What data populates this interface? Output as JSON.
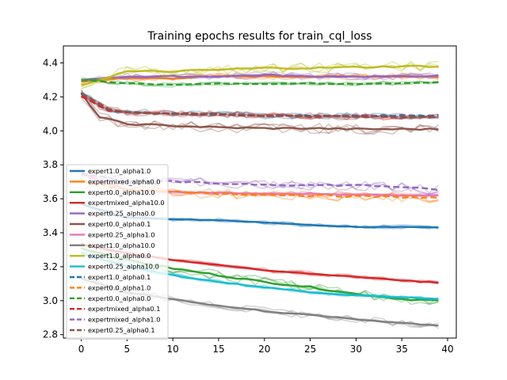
{
  "chart_data": {
    "type": "line",
    "title": "Training epochs results for train_cql_loss",
    "xlabel": "",
    "ylabel": "",
    "xlim": [
      -1.95,
      40.95
    ],
    "ylim": [
      2.78,
      4.5
    ],
    "xticks": [
      0,
      5,
      10,
      15,
      20,
      25,
      30,
      35,
      40
    ],
    "yticks": [
      2.8,
      3.0,
      3.2,
      3.4,
      3.6,
      3.8,
      4.0,
      4.2,
      4.4
    ],
    "x_start": 0,
    "x_end": 39,
    "grid": false,
    "legend_position": "lower-left",
    "series": [
      {
        "name": "expert1.0_alpha1.0",
        "color": "#1f77b4",
        "dash": false,
        "points": [
          [
            0,
            3.57
          ],
          [
            5,
            3.49
          ],
          [
            10,
            3.48
          ],
          [
            15,
            3.475
          ],
          [
            20,
            3.46
          ],
          [
            25,
            3.445
          ],
          [
            30,
            3.435
          ],
          [
            35,
            3.435
          ],
          [
            39,
            3.43
          ]
        ]
      },
      {
        "name": "expertmixed_alpha0.0",
        "color": "#ff7f0e",
        "dash": false,
        "points": [
          [
            0,
            4.29
          ],
          [
            5,
            4.31
          ],
          [
            10,
            4.31
          ],
          [
            15,
            4.32
          ],
          [
            20,
            4.32
          ],
          [
            25,
            4.32
          ],
          [
            30,
            4.32
          ],
          [
            35,
            4.32
          ],
          [
            39,
            4.32
          ]
        ]
      },
      {
        "name": "expert0.0_alpha10.0",
        "color": "#2ca02c",
        "dash": false,
        "points": [
          [
            0,
            3.31
          ],
          [
            5,
            3.24
          ],
          [
            10,
            3.19
          ],
          [
            15,
            3.15
          ],
          [
            20,
            3.11
          ],
          [
            25,
            3.08
          ],
          [
            30,
            3.04
          ],
          [
            35,
            3.01
          ],
          [
            39,
            3.0
          ]
        ]
      },
      {
        "name": "expertmixed_alpha10.0",
        "color": "#d62728",
        "dash": false,
        "points": [
          [
            0,
            3.33
          ],
          [
            5,
            3.28
          ],
          [
            10,
            3.24
          ],
          [
            15,
            3.21
          ],
          [
            20,
            3.18
          ],
          [
            25,
            3.16
          ],
          [
            30,
            3.14
          ],
          [
            35,
            3.12
          ],
          [
            39,
            3.105
          ]
        ]
      },
      {
        "name": "expert0.25_alpha0.0",
        "color": "#9467bd",
        "dash": false,
        "points": [
          [
            0,
            4.3
          ],
          [
            5,
            4.32
          ],
          [
            10,
            4.32
          ],
          [
            15,
            4.32
          ],
          [
            20,
            4.33
          ],
          [
            25,
            4.32
          ],
          [
            30,
            4.32
          ],
          [
            35,
            4.32
          ],
          [
            39,
            4.325
          ]
        ]
      },
      {
        "name": "expert0.0_alpha0.1",
        "color": "#8c564b",
        "dash": false,
        "points": [
          [
            0,
            4.22
          ],
          [
            2,
            4.08
          ],
          [
            5,
            4.04
          ],
          [
            10,
            4.03
          ],
          [
            15,
            4.02
          ],
          [
            20,
            4.015
          ],
          [
            25,
            4.015
          ],
          [
            30,
            4.01
          ],
          [
            35,
            4.01
          ],
          [
            39,
            4.01
          ]
        ]
      },
      {
        "name": "expert0.25_alpha1.0",
        "color": "#e377c2",
        "dash": false,
        "points": [
          [
            0,
            3.75
          ],
          [
            5,
            3.65
          ],
          [
            10,
            3.64
          ],
          [
            15,
            3.635
          ],
          [
            20,
            3.63
          ],
          [
            25,
            3.63
          ],
          [
            30,
            3.625
          ],
          [
            35,
            3.62
          ],
          [
            39,
            3.62
          ]
        ]
      },
      {
        "name": "expert1.0_alpha10.0",
        "color": "#7f7f7f",
        "dash": false,
        "points": [
          [
            0,
            3.13
          ],
          [
            5,
            3.05
          ],
          [
            10,
            3.01
          ],
          [
            15,
            2.97
          ],
          [
            20,
            2.94
          ],
          [
            25,
            2.915
          ],
          [
            30,
            2.89
          ],
          [
            35,
            2.87
          ],
          [
            39,
            2.855
          ]
        ]
      },
      {
        "name": "expert1.0_alpha0.0",
        "color": "#bcbd22",
        "dash": false,
        "points": [
          [
            0,
            4.27
          ],
          [
            5,
            4.35
          ],
          [
            10,
            4.35
          ],
          [
            15,
            4.36
          ],
          [
            20,
            4.37
          ],
          [
            25,
            4.37
          ],
          [
            30,
            4.375
          ],
          [
            35,
            4.38
          ],
          [
            39,
            4.38
          ]
        ]
      },
      {
        "name": "expert0.25_alpha10.0",
        "color": "#17becf",
        "dash": false,
        "points": [
          [
            0,
            3.28
          ],
          [
            5,
            3.2
          ],
          [
            10,
            3.15
          ],
          [
            15,
            3.11
          ],
          [
            20,
            3.08
          ],
          [
            25,
            3.05
          ],
          [
            30,
            3.03
          ],
          [
            35,
            3.02
          ],
          [
            39,
            3.01
          ]
        ]
      },
      {
        "name": "expert1.0_alpha0.1",
        "color": "#1f77b4",
        "dash": true,
        "points": [
          [
            0,
            4.22
          ],
          [
            3,
            4.12
          ],
          [
            5,
            4.11
          ],
          [
            10,
            4.1
          ],
          [
            15,
            4.095
          ],
          [
            20,
            4.09
          ],
          [
            25,
            4.09
          ],
          [
            30,
            4.09
          ],
          [
            35,
            4.09
          ],
          [
            39,
            4.09
          ]
        ]
      },
      {
        "name": "expert0.0_alpha1.0",
        "color": "#ff7f0e",
        "dash": true,
        "points": [
          [
            0,
            3.71
          ],
          [
            5,
            3.65
          ],
          [
            10,
            3.64
          ],
          [
            15,
            3.63
          ],
          [
            20,
            3.625
          ],
          [
            25,
            3.62
          ],
          [
            30,
            3.615
          ],
          [
            35,
            3.61
          ],
          [
            39,
            3.605
          ]
        ]
      },
      {
        "name": "expert0.0_alpha0.0",
        "color": "#2ca02c",
        "dash": true,
        "points": [
          [
            0,
            4.3
          ],
          [
            5,
            4.28
          ],
          [
            10,
            4.27
          ],
          [
            15,
            4.28
          ],
          [
            20,
            4.275
          ],
          [
            25,
            4.28
          ],
          [
            30,
            4.275
          ],
          [
            35,
            4.28
          ],
          [
            39,
            4.285
          ]
        ]
      },
      {
        "name": "expertmixed_alpha0.1",
        "color": "#d62728",
        "dash": true,
        "points": [
          [
            0,
            4.2
          ],
          [
            3,
            4.12
          ],
          [
            5,
            4.11
          ],
          [
            10,
            4.1
          ],
          [
            15,
            4.1
          ],
          [
            20,
            4.09
          ],
          [
            25,
            4.085
          ],
          [
            30,
            4.085
          ],
          [
            35,
            4.08
          ],
          [
            39,
            4.08
          ]
        ]
      },
      {
        "name": "expertmixed_alpha1.0",
        "color": "#9467bd",
        "dash": true,
        "points": [
          [
            0,
            3.75
          ],
          [
            5,
            3.7
          ],
          [
            10,
            3.7
          ],
          [
            15,
            3.69
          ],
          [
            20,
            3.685
          ],
          [
            25,
            3.68
          ],
          [
            30,
            3.68
          ],
          [
            35,
            3.67
          ],
          [
            39,
            3.65
          ]
        ]
      },
      {
        "name": "expert0.25_alpha0.1",
        "color": "#8c564b",
        "dash": true,
        "points": [
          [
            0,
            4.22
          ],
          [
            3,
            4.13
          ],
          [
            5,
            4.11
          ],
          [
            10,
            4.1
          ],
          [
            15,
            4.1
          ],
          [
            20,
            4.09
          ],
          [
            25,
            4.085
          ],
          [
            30,
            4.085
          ],
          [
            35,
            4.08
          ],
          [
            39,
            4.08
          ]
        ]
      }
    ]
  }
}
